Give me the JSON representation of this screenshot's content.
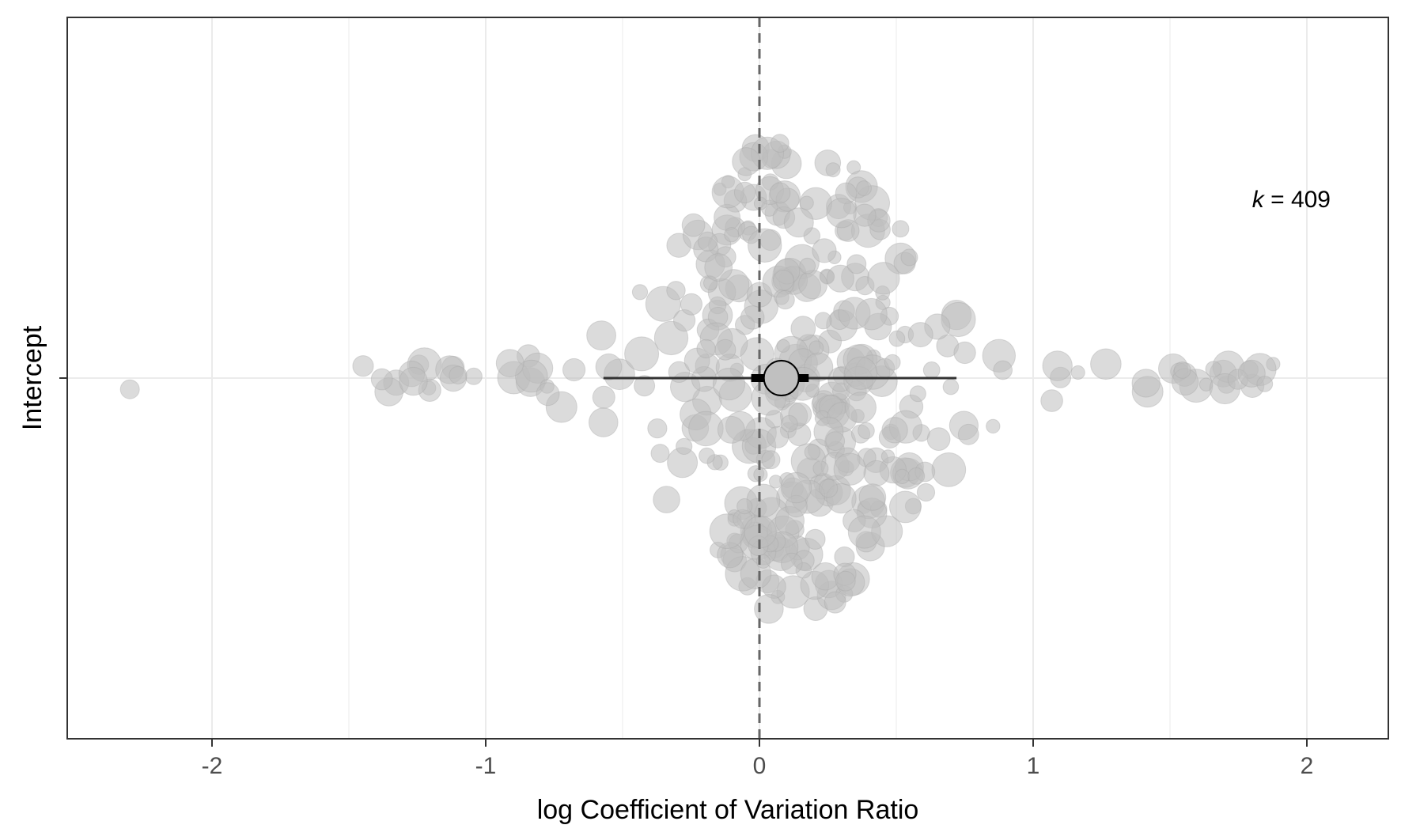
{
  "chart_data": {
    "type": "scatter",
    "subtype": "orchard-plot",
    "title": "",
    "xlabel": "log Coefficient of Variation Ratio",
    "ylabel": "Intercept",
    "xlim": [
      -2.5,
      2.3
    ],
    "x_ticks": [
      -2,
      -1,
      0,
      1,
      2
    ],
    "x_tick_labels": [
      "-2",
      "-1",
      "0",
      "1",
      "2"
    ],
    "y_categories": [
      "Intercept"
    ],
    "grid": true,
    "reference_line_x": 0,
    "annotation": {
      "italic_part": "k",
      "rest": " = 409"
    },
    "k": 409,
    "summary": {
      "estimate": 0.08,
      "ci": [
        -0.03,
        0.18
      ],
      "pi": [
        -0.57,
        0.72
      ]
    },
    "colors": {
      "points": "#bdbdbd",
      "summary_fill": "#c0c0c0",
      "summary_stroke": "#000000",
      "ref_line": "#666666",
      "grid": "#ebebeb"
    }
  }
}
